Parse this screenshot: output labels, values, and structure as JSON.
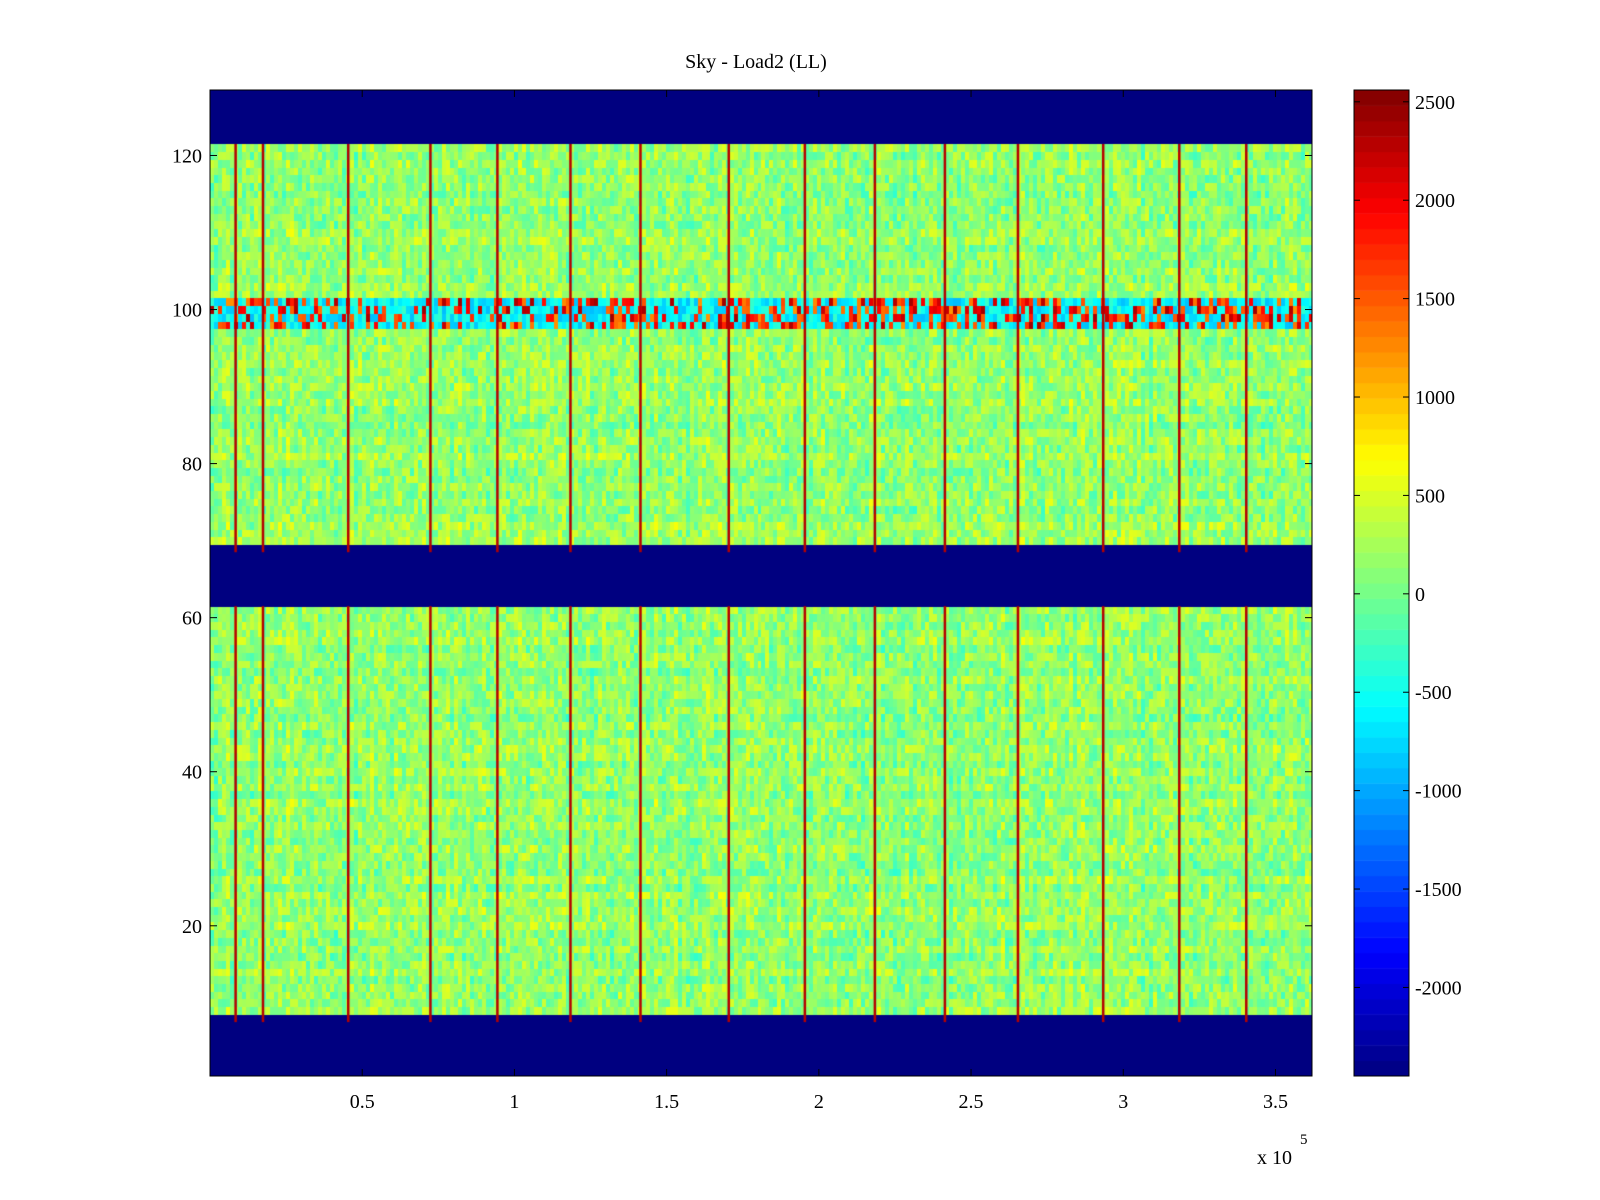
{
  "chart_data": {
    "type": "heatmap",
    "title": "Sky - Load2 (LL)",
    "xlabel": "",
    "ylabel": "",
    "x_exponent_label": "x 10",
    "x_exponent": "5",
    "xlim": [
      0,
      362000
    ],
    "ylim": [
      0.5,
      128.5
    ],
    "x_ticks": [
      {
        "value": 50000,
        "label": "0.5"
      },
      {
        "value": 100000,
        "label": "1"
      },
      {
        "value": 150000,
        "label": "1.5"
      },
      {
        "value": 200000,
        "label": "2"
      },
      {
        "value": 250000,
        "label": "2.5"
      },
      {
        "value": 300000,
        "label": "3"
      },
      {
        "value": 350000,
        "label": "3.5"
      }
    ],
    "y_ticks": [
      {
        "value": 20,
        "label": "20"
      },
      {
        "value": 40,
        "label": "40"
      },
      {
        "value": 60,
        "label": "60"
      },
      {
        "value": 80,
        "label": "80"
      },
      {
        "value": 100,
        "label": "100"
      },
      {
        "value": 120,
        "label": "120"
      }
    ],
    "colorbar": {
      "colormap": "jet",
      "clim": [
        -2450,
        2560
      ],
      "ticks": [
        {
          "value": 2500,
          "label": "2500"
        },
        {
          "value": 2000,
          "label": "2000"
        },
        {
          "value": 1500,
          "label": "1500"
        },
        {
          "value": 1000,
          "label": "1000"
        },
        {
          "value": 500,
          "label": "500"
        },
        {
          "value": 0,
          "label": "0"
        },
        {
          "value": -500,
          "label": "-500"
        },
        {
          "value": -1000,
          "label": "-1000"
        },
        {
          "value": -1500,
          "label": "-1500"
        },
        {
          "value": -2000,
          "label": "-2000"
        }
      ]
    },
    "masked_bands": [
      {
        "y_from": 0.5,
        "y_to": 7.5,
        "value": -2450
      },
      {
        "y_from": 61.5,
        "y_to": 68.5,
        "value": -2450
      },
      {
        "y_from": 121.5,
        "y_to": 128.5,
        "value": -2450
      }
    ],
    "background_level": 150,
    "noise_amplitude": 350,
    "bright_columns_x": [
      8000,
      17000,
      45000,
      72000,
      94000,
      118000,
      141000,
      170000,
      195000,
      218000,
      241000,
      265000,
      293000,
      318000,
      340000
    ],
    "bright_column_value": 2300,
    "low_row_band": {
      "y_from": 98,
      "y_to": 101,
      "value": -900
    }
  },
  "colors": {
    "masked": "#00008f",
    "axis": "#000000",
    "background": "#ffffff"
  }
}
